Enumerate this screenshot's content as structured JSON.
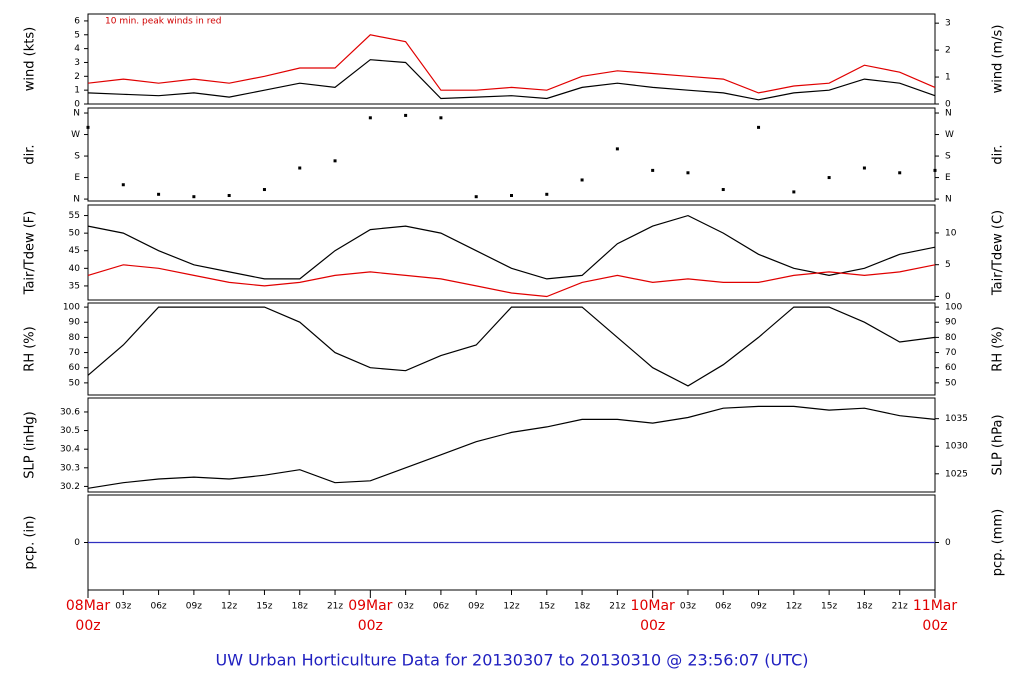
{
  "title": "UW Urban Horticulture Data for 20130307  to  20130310 @ 23:56:07  (UTC)",
  "title_color": "#2020c0",
  "chart_data": [
    {
      "type": "line",
      "ylabel": "wind (kts)",
      "y2label": "wind (m/s)",
      "annotation": "10 min. peak winds in red",
      "annotation_color": "#d00000",
      "x": [
        0,
        3,
        6,
        9,
        12,
        15,
        18,
        21,
        24,
        27,
        30,
        33,
        36,
        39,
        42,
        45,
        48,
        51,
        54,
        57,
        60,
        63,
        66,
        69,
        72
      ],
      "xlim": [
        0,
        72
      ],
      "ylim": [
        0,
        6.5
      ],
      "yticks": [
        0,
        1,
        2,
        3,
        4,
        5,
        6
      ],
      "y2lim": [
        0,
        3.34
      ],
      "y2ticks": [
        0,
        1,
        2,
        3
      ],
      "series": [
        {
          "name": "wind",
          "color": "#000000",
          "values": [
            0.8,
            0.7,
            0.6,
            0.8,
            0.5,
            1.0,
            1.5,
            1.2,
            3.2,
            3.0,
            0.4,
            0.5,
            0.6,
            0.4,
            1.2,
            1.5,
            1.2,
            1.0,
            0.8,
            0.3,
            0.8,
            1.0,
            1.8,
            1.5,
            0.6
          ]
        },
        {
          "name": "peak",
          "color": "#e00000",
          "values": [
            1.5,
            1.8,
            1.5,
            1.8,
            1.5,
            2.0,
            2.6,
            2.6,
            5.0,
            4.5,
            1.0,
            1.0,
            1.2,
            1.0,
            2.0,
            2.4,
            2.2,
            2.0,
            1.8,
            0.8,
            1.3,
            1.5,
            2.8,
            2.3,
            1.2
          ]
        }
      ]
    },
    {
      "type": "scatter",
      "ylabel": "dir.",
      "y2label": "dir.",
      "x": [
        0,
        3,
        6,
        9,
        12,
        15,
        18,
        21,
        24,
        27,
        30,
        33,
        36,
        39,
        42,
        45,
        48,
        51,
        54,
        57,
        60,
        63,
        66,
        69,
        72
      ],
      "xlim": [
        0,
        72
      ],
      "ylim": [
        -8,
        381
      ],
      "yticks": [
        {
          "value": 0,
          "label": "N"
        },
        {
          "value": 90,
          "label": "E"
        },
        {
          "value": 180,
          "label": "S"
        },
        {
          "value": 270,
          "label": "W"
        },
        {
          "value": 360,
          "label": "N"
        }
      ],
      "y2lim": [
        -8,
        381
      ],
      "y2ticks": [
        {
          "value": 0,
          "label": "N"
        },
        {
          "value": 90,
          "label": "E"
        },
        {
          "value": 180,
          "label": "S"
        },
        {
          "value": 270,
          "label": "W"
        },
        {
          "value": 360,
          "label": "N"
        }
      ],
      "series": [
        {
          "name": "dir",
          "color": "#000000",
          "values": [
            300,
            60,
            20,
            10,
            15,
            40,
            130,
            160,
            340,
            350,
            340,
            10,
            15,
            20,
            80,
            210,
            120,
            110,
            40,
            300,
            30,
            90,
            130,
            110,
            120
          ]
        }
      ]
    },
    {
      "type": "line",
      "ylabel": "Tair/Tdew (F)",
      "y2label": "Tair/Tdew (C)",
      "x": [
        0,
        3,
        6,
        9,
        12,
        15,
        18,
        21,
        24,
        27,
        30,
        33,
        36,
        39,
        42,
        45,
        48,
        51,
        54,
        57,
        60,
        63,
        66,
        69,
        72
      ],
      "xlim": [
        0,
        72
      ],
      "ylim": [
        31,
        58
      ],
      "yticks": [
        35,
        40,
        45,
        50,
        55
      ],
      "y2lim": [
        -0.56,
        14.4
      ],
      "y2ticks": [
        0,
        5,
        10
      ],
      "series": [
        {
          "name": "Tair",
          "color": "#000000",
          "values": [
            52,
            50,
            45,
            41,
            39,
            37,
            37,
            45,
            51,
            52,
            50,
            45,
            40,
            37,
            38,
            47,
            52,
            55,
            50,
            44,
            40,
            38,
            40,
            44,
            46
          ]
        },
        {
          "name": "Tdew",
          "color": "#e00000",
          "values": [
            38,
            41,
            40,
            38,
            36,
            35,
            36,
            38,
            39,
            38,
            37,
            35,
            33,
            32,
            36,
            38,
            36,
            37,
            36,
            36,
            38,
            39,
            38,
            39,
            41
          ]
        }
      ]
    },
    {
      "type": "line",
      "ylabel": "RH (%)",
      "y2label": "RH (%)",
      "x": [
        0,
        3,
        6,
        9,
        12,
        15,
        18,
        21,
        24,
        27,
        30,
        33,
        36,
        39,
        42,
        45,
        48,
        51,
        54,
        57,
        60,
        63,
        66,
        69,
        72
      ],
      "xlim": [
        0,
        72
      ],
      "ylim": [
        42,
        102.7
      ],
      "yticks": [
        50,
        60,
        70,
        80,
        90,
        100
      ],
      "y2lim": [
        42,
        102.7
      ],
      "y2ticks": [
        50,
        60,
        70,
        80,
        90,
        100
      ],
      "series": [
        {
          "name": "RH",
          "color": "#000000",
          "values": [
            55,
            75,
            100,
            100,
            100,
            100,
            90,
            70,
            60,
            58,
            68,
            75,
            100,
            100,
            100,
            80,
            60,
            48,
            62,
            80,
            100,
            100,
            90,
            77,
            80
          ]
        }
      ]
    },
    {
      "type": "line",
      "ylabel": "SLP (inHg)",
      "y2label": "SLP (hPa)",
      "x": [
        0,
        3,
        6,
        9,
        12,
        15,
        18,
        21,
        24,
        27,
        30,
        33,
        36,
        39,
        42,
        45,
        48,
        51,
        54,
        57,
        60,
        63,
        66,
        69,
        72
      ],
      "xlim": [
        0,
        72
      ],
      "ylim": [
        30.17,
        30.675
      ],
      "yticks": [
        30.2,
        30.3,
        30.4,
        30.5,
        30.6
      ],
      "y2lim": [
        1021.7,
        1038.75
      ],
      "y2ticks": [
        1025,
        1030,
        1035
      ],
      "series": [
        {
          "name": "SLP",
          "color": "#000000",
          "values": [
            30.19,
            30.22,
            30.24,
            30.25,
            30.24,
            30.26,
            30.29,
            30.22,
            30.23,
            30.3,
            30.37,
            30.44,
            30.49,
            30.52,
            30.56,
            30.56,
            30.54,
            30.57,
            30.62,
            30.63,
            30.63,
            30.61,
            30.62,
            30.58,
            30.56
          ]
        }
      ]
    },
    {
      "type": "line",
      "ylabel": "pcp. (in)",
      "y2label": "pcp. (mm)",
      "x": [
        0,
        3,
        6,
        9,
        12,
        15,
        18,
        21,
        24,
        27,
        30,
        33,
        36,
        39,
        42,
        45,
        48,
        51,
        54,
        57,
        60,
        63,
        66,
        69,
        72
      ],
      "xlim": [
        0,
        72
      ],
      "ylim": [
        -1,
        1
      ],
      "yticks": [
        0
      ],
      "y2lim": [
        -1,
        1
      ],
      "y2ticks": [
        0
      ],
      "major_tick_color": "#e00000",
      "xticks": [
        {
          "value": 0,
          "label": "08Mar 00z"
        },
        {
          "value": 3,
          "label": "03z"
        },
        {
          "value": 6,
          "label": "06z"
        },
        {
          "value": 9,
          "label": "09z"
        },
        {
          "value": 12,
          "label": "12z"
        },
        {
          "value": 15,
          "label": "15z"
        },
        {
          "value": 18,
          "label": "18z"
        },
        {
          "value": 21,
          "label": "21z"
        },
        {
          "value": 24,
          "label": "09Mar 00z"
        },
        {
          "value": 27,
          "label": "03z"
        },
        {
          "value": 30,
          "label": "06z"
        },
        {
          "value": 33,
          "label": "09z"
        },
        {
          "value": 36,
          "label": "12z"
        },
        {
          "value": 39,
          "label": "15z"
        },
        {
          "value": 42,
          "label": "18z"
        },
        {
          "value": 45,
          "label": "21z"
        },
        {
          "value": 48,
          "label": "10Mar 00z"
        },
        {
          "value": 51,
          "label": "03z"
        },
        {
          "value": 54,
          "label": "06z"
        },
        {
          "value": 57,
          "label": "09z"
        },
        {
          "value": 60,
          "label": "12z"
        },
        {
          "value": 63,
          "label": "15z"
        },
        {
          "value": 66,
          "label": "18z"
        },
        {
          "value": 69,
          "label": "21z"
        },
        {
          "value": 72,
          "label": "11Mar 00z"
        }
      ],
      "series": [
        {
          "name": "pcp",
          "color": "#3030c0",
          "values": [
            0,
            0,
            0,
            0,
            0,
            0,
            0,
            0,
            0,
            0,
            0,
            0,
            0,
            0,
            0,
            0,
            0,
            0,
            0,
            0,
            0,
            0,
            0,
            0,
            0
          ]
        }
      ]
    }
  ]
}
